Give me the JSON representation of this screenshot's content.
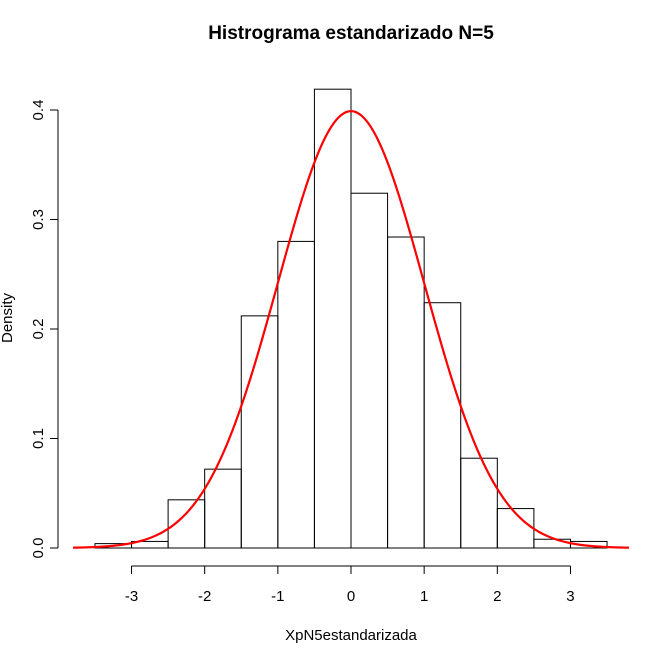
{
  "chart_data": {
    "type": "bar",
    "title": "Histrograma estandarizado N=5",
    "xlabel": "XpN5estandarizada",
    "ylabel": "Density",
    "xlim": [
      -3.8,
      3.8
    ],
    "ylim": [
      0,
      0.4
    ],
    "x_ticks": [
      -3,
      -2,
      -1,
      0,
      1,
      2,
      3
    ],
    "y_ticks": [
      0.0,
      0.1,
      0.2,
      0.3,
      0.4
    ],
    "y_tick_labels": [
      "0.0",
      "0.1",
      "0.2",
      "0.3",
      "0.4"
    ],
    "bin_edges": [
      -3.5,
      -3.0,
      -2.5,
      -2.0,
      -1.5,
      -1.0,
      -0.5,
      0.0,
      0.5,
      1.0,
      1.5,
      2.0,
      2.5,
      3.0,
      3.5
    ],
    "values": [
      0.004,
      0.006,
      0.044,
      0.072,
      0.212,
      0.28,
      0.419,
      0.324,
      0.284,
      0.224,
      0.082,
      0.036,
      0.008,
      0.006
    ],
    "overlay_curve": {
      "type": "line",
      "function": "normal density, mean 0, sd 1",
      "x_range": [
        -3.8,
        3.8
      ],
      "color": "#ff0000"
    },
    "grid": false,
    "legend": false
  }
}
